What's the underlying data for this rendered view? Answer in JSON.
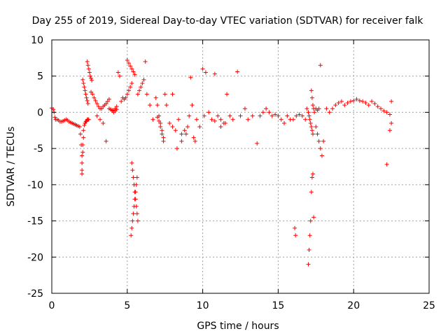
{
  "chart_data": {
    "type": "scatter",
    "title": "Day 255 of 2019, Sidereal Day-to-day VTEC variation (SDTVAR) for receiver falk",
    "xlabel": "GPS time / hours",
    "ylabel": "SDTVAR / TECUs",
    "xlim": [
      0,
      25
    ],
    "ylim": [
      -25,
      10
    ],
    "xticks": [
      0,
      5,
      10,
      15,
      20,
      25
    ],
    "yticks": [
      -25,
      -20,
      -15,
      -10,
      -5,
      0,
      5,
      10
    ],
    "xtick_labels": [
      "0",
      "5",
      "10",
      "15",
      "20",
      "25"
    ],
    "ytick_labels": [
      "-25",
      "-20",
      "-15",
      "-10",
      "-5",
      "0",
      "5",
      "10"
    ],
    "grid": true,
    "marker": "+",
    "color": "#ff0000",
    "series": [
      {
        "name": "SDTVAR",
        "x": [
          0.0,
          0.1,
          0.15,
          0.2,
          0.25,
          0.35,
          0.45,
          0.55,
          0.65,
          0.75,
          0.85,
          0.95,
          1.05,
          1.15,
          1.25,
          1.35,
          1.45,
          1.55,
          1.65,
          1.75,
          1.85,
          1.9,
          1.95,
          2.0,
          2.0,
          2.0,
          2.0,
          2.05,
          2.05,
          2.1,
          2.1,
          2.15,
          2.2,
          2.25,
          2.3,
          2.35,
          2.4,
          2.45,
          2.05,
          2.1,
          2.15,
          2.2,
          2.25,
          2.3,
          2.35,
          2.4,
          2.35,
          2.4,
          2.45,
          2.5,
          2.55,
          2.6,
          2.65,
          2.6,
          2.7,
          2.8,
          2.9,
          3.0,
          3.1,
          3.2,
          3.3,
          3.4,
          3.5,
          3.6,
          3.7,
          3.8,
          3.0,
          3.2,
          3.4,
          3.6,
          3.8,
          3.9,
          4.0,
          4.1,
          4.2,
          4.3,
          4.4,
          4.5,
          4.0,
          4.1,
          4.2,
          4.3,
          4.6,
          4.7,
          4.8,
          4.9,
          5.0,
          5.1,
          5.2,
          5.3,
          5.0,
          5.1,
          5.2,
          5.3,
          5.4,
          5.5,
          5.3,
          5.35,
          5.4,
          5.45,
          5.5,
          5.55,
          5.6,
          5.65,
          5.7,
          5.25,
          5.3,
          5.35,
          5.4,
          5.45,
          5.5,
          5.55,
          5.6,
          5.65,
          5.7,
          5.8,
          5.9,
          6.0,
          6.1,
          6.2,
          6.3,
          6.5,
          6.7,
          6.9,
          7.0,
          7.1,
          7.2,
          7.3,
          7.4,
          7.5,
          7.0,
          7.1,
          7.2,
          7.3,
          7.4,
          7.6,
          7.8,
          8.0,
          8.2,
          8.4,
          8.6,
          8.8,
          9.0,
          9.2,
          9.4,
          9.6,
          9.8,
          8.0,
          8.3,
          8.6,
          8.9,
          9.1,
          9.3,
          9.5,
          10.0,
          10.2,
          10.4,
          10.6,
          10.8,
          11.0,
          11.2,
          11.4,
          11.6,
          11.8,
          12.0,
          10.1,
          10.8,
          11.2,
          11.5,
          12.3,
          12.5,
          12.8,
          13.0,
          13.3,
          13.6,
          13.8,
          14.0,
          14.2,
          14.4,
          14.6,
          14.8,
          15.0,
          15.2,
          15.4,
          15.6,
          15.8,
          16.0,
          16.2,
          16.4,
          16.6,
          16.8,
          16.1,
          16.15,
          16.9,
          17.0,
          17.05,
          17.1,
          17.15,
          17.2,
          17.25,
          17.3,
          17.0,
          17.05,
          17.1,
          17.15,
          17.2,
          17.25,
          17.3,
          17.35,
          17.2,
          17.25,
          17.3,
          17.35,
          17.4,
          17.5,
          17.6,
          17.7,
          17.5,
          17.6,
          17.7,
          17.8,
          17.9,
          18.0,
          17.8,
          18.2,
          18.4,
          18.6,
          18.8,
          19.0,
          19.2,
          19.4,
          19.6,
          19.8,
          20.0,
          20.2,
          20.4,
          20.6,
          20.8,
          21.0,
          21.2,
          21.4,
          21.6,
          21.8,
          22.0,
          22.2,
          22.4,
          22.2,
          22.4,
          22.5,
          22.5
        ],
        "y": [
          0.6,
          0.4,
          0.0,
          -0.7,
          -1.0,
          -1.0,
          -1.1,
          -1.3,
          -1.3,
          -1.2,
          -1.1,
          -1.0,
          -1.1,
          -1.3,
          -1.4,
          -1.5,
          -1.6,
          -1.7,
          -1.8,
          -1.9,
          -2.0,
          -3.0,
          -4.5,
          -6.0,
          -7.0,
          -8.0,
          -8.5,
          -5.5,
          -4.5,
          -3.5,
          -2.5,
          -1.8,
          -1.5,
          -1.3,
          -1.2,
          -1.0,
          -1.0,
          -1.0,
          4.5,
          4.0,
          3.5,
          3.0,
          2.5,
          2.0,
          1.6,
          1.2,
          7.0,
          6.5,
          6.0,
          5.5,
          5.0,
          4.7,
          4.4,
          2.8,
          2.5,
          2.0,
          1.6,
          1.2,
          0.8,
          0.5,
          0.5,
          0.8,
          1.0,
          1.2,
          1.5,
          1.8,
          -0.5,
          -1.0,
          -1.5,
          -4.0,
          0.5,
          0.4,
          0.3,
          0.3,
          0.5,
          0.8,
          5.5,
          5.0,
          0.2,
          0.0,
          0.2,
          0.4,
          1.5,
          2.0,
          1.8,
          2.0,
          2.5,
          3.0,
          3.5,
          4.0,
          7.2,
          6.8,
          6.4,
          6.0,
          5.6,
          5.2,
          -7.0,
          -8.0,
          -9.0,
          -10.0,
          -11.0,
          -12.0,
          -13.0,
          -14.0,
          -15.0,
          -17.0,
          -16.0,
          -15.0,
          -14.0,
          -13.0,
          -12.0,
          -11.0,
          -10.0,
          -9.0,
          2.5,
          3.0,
          3.5,
          4.0,
          4.5,
          7.0,
          2.5,
          1.0,
          -1.0,
          2.0,
          1.0,
          -0.5,
          -1.5,
          -2.5,
          -3.5,
          2.5,
          -0.7,
          -1.2,
          -2.0,
          -3.0,
          -4.0,
          1.0,
          -1.5,
          -2.0,
          -2.5,
          -1.0,
          -3.0,
          -2.5,
          -2.0,
          4.8,
          -3.5,
          -1.0,
          -2.0,
          2.5,
          -5.0,
          -4.0,
          -3.0,
          -0.5,
          1.0,
          -4.0,
          6.0,
          5.5,
          0.0,
          -1.0,
          5.3,
          -0.5,
          -1.0,
          -1.5,
          2.5,
          -0.5,
          -1.0,
          -0.5,
          -1.2,
          -2.0,
          -1.5,
          5.6,
          -0.5,
          0.5,
          -1.0,
          -0.5,
          -4.3,
          -0.5,
          0.0,
          0.5,
          0.0,
          -0.5,
          -0.3,
          -0.5,
          -1.0,
          -1.5,
          -0.5,
          -1.0,
          -1.0,
          -0.5,
          -0.3,
          -0.5,
          -1.0,
          -16.0,
          -17.0,
          0.5,
          0.0,
          -0.5,
          -1.0,
          -1.5,
          -2.0,
          -2.5,
          -3.0,
          -21.0,
          -19.0,
          -17.0,
          -15.0,
          -11.0,
          -9.0,
          -8.5,
          -14.5,
          3.0,
          2.0,
          1.0,
          0.5,
          0.0,
          0.5,
          0.3,
          0.5,
          -2.0,
          -3.0,
          -4.0,
          -5.0,
          -6.0,
          -4.0,
          6.5,
          0.5,
          0.0,
          0.5,
          1.0,
          1.3,
          1.5,
          1.0,
          1.3,
          1.5,
          1.6,
          1.8,
          1.6,
          1.5,
          1.3,
          1.0,
          1.5,
          1.2,
          0.8,
          0.5,
          0.2,
          0.0,
          -0.3,
          -7.2,
          -2.5,
          -1.5,
          1.5
        ]
      }
    ]
  }
}
